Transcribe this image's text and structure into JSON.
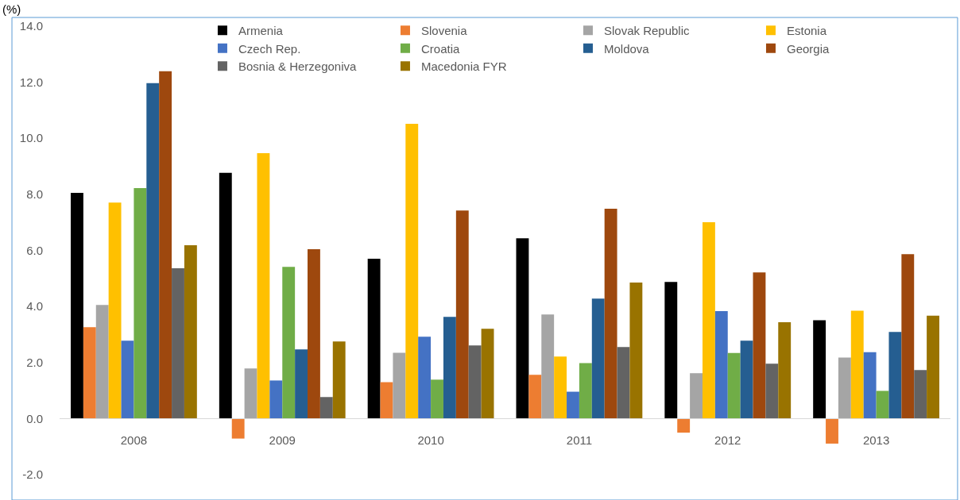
{
  "chart_data": {
    "type": "bar",
    "ylabel": "(%)",
    "categories": [
      "2008",
      "2009",
      "2010",
      "2011",
      "2012",
      "2013"
    ],
    "series": [
      {
        "name": "Armenia",
        "color": "#000000",
        "values": [
          8.05,
          8.76,
          5.7,
          6.43,
          4.87,
          3.51
        ]
      },
      {
        "name": "Slovenia",
        "color": "#ed7d31",
        "values": [
          3.26,
          -0.71,
          1.3,
          1.56,
          -0.5,
          -0.89
        ]
      },
      {
        "name": "Slovak Republic",
        "color": "#a5a5a5",
        "values": [
          4.05,
          1.79,
          2.35,
          3.71,
          1.62,
          2.18
        ]
      },
      {
        "name": "Estonia",
        "color": "#ffc000",
        "values": [
          7.7,
          9.46,
          10.51,
          2.21,
          7.0,
          3.85
        ]
      },
      {
        "name": "Czech Rep.",
        "color": "#4472c4",
        "values": [
          2.78,
          1.36,
          2.92,
          0.96,
          3.83,
          2.37
        ]
      },
      {
        "name": "Croatia",
        "color": "#70ad47",
        "values": [
          8.22,
          5.41,
          1.39,
          1.98,
          2.34,
          0.99
        ]
      },
      {
        "name": "Moldova",
        "color": "#255e91",
        "values": [
          11.96,
          2.47,
          3.63,
          4.28,
          2.78,
          3.09
        ]
      },
      {
        "name": "Georgia",
        "color": "#9e480e",
        "values": [
          12.38,
          6.04,
          7.42,
          7.48,
          5.21,
          5.86
        ]
      },
      {
        "name": "Bosnia & Herzegoniva",
        "color": "#636363",
        "values": [
          5.36,
          0.77,
          2.61,
          2.55,
          1.96,
          1.73
        ]
      },
      {
        "name": "Macedonia FYR",
        "color": "#997300",
        "values": [
          6.18,
          2.75,
          3.2,
          4.85,
          3.44,
          3.67
        ]
      }
    ],
    "ylim": [
      -2.9,
      14.3
    ],
    "yticks": [
      {
        "value": -2,
        "label": "-2.0"
      },
      {
        "value": 0,
        "label": "0.0"
      },
      {
        "value": 2,
        "label": "2.0"
      },
      {
        "value": 4,
        "label": "4.0"
      },
      {
        "value": 6,
        "label": "6.0"
      },
      {
        "value": 8,
        "label": "8.0"
      },
      {
        "value": 10,
        "label": "10.0"
      },
      {
        "value": 12,
        "label": "12.0"
      },
      {
        "value": 14,
        "label": "14.0"
      }
    ],
    "grid": false,
    "legend": "top"
  }
}
